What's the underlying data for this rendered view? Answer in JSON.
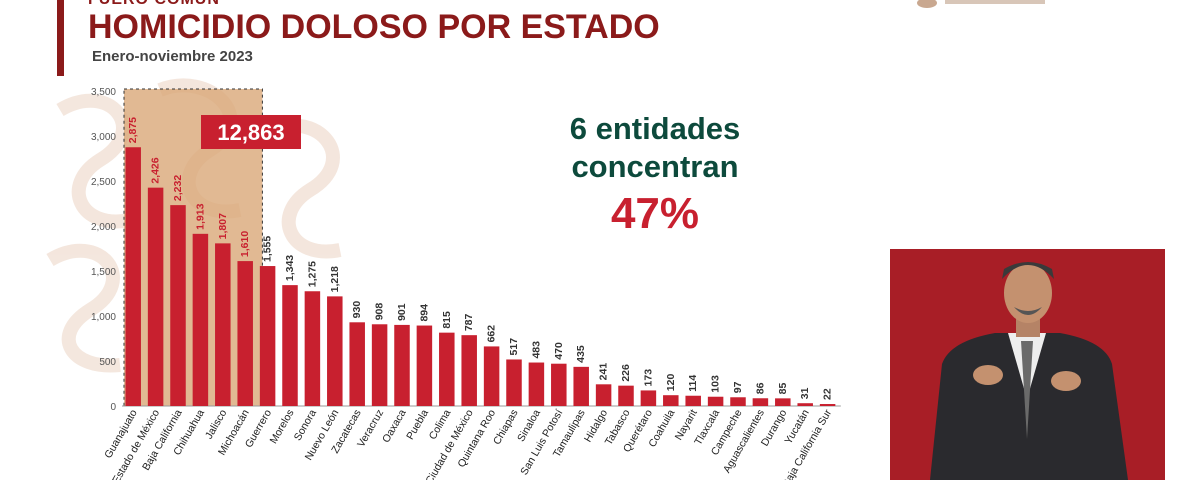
{
  "header": {
    "kicker": "FUERO COMÚN",
    "title": "HOMICIDIO DOLOSO POR ESTADO",
    "subtitle": "Enero-noviembre 2023"
  },
  "callout": {
    "line1": "6 entidades",
    "line2": "concentran",
    "percent": "47%"
  },
  "colors": {
    "bar": "#c8202f",
    "highlight_fill": "#d9a878",
    "title": "#8b1a1a",
    "callout_text": "#0d4a3c",
    "total_box": "#c8202f",
    "video_bg": "#a81e26"
  },
  "interpreter": {
    "icon": "sign-language-interpreter-icon"
  },
  "chart_data": {
    "type": "bar",
    "title": "HOMICIDIO DOLOSO POR ESTADO",
    "subtitle": "Enero-noviembre 2023",
    "categories": [
      "Guanajuato",
      "Estado de México",
      "Baja California",
      "Chihuahua",
      "Jalisco",
      "Michoacán",
      "Guerrero",
      "Morelos",
      "Sonora",
      "Nuevo León",
      "Zacatecas",
      "Veracruz",
      "Oaxaca",
      "Puebla",
      "Colima",
      "Ciudad de México",
      "Quintana Roo",
      "Chiapas",
      "Sinaloa",
      "San Luis Potosí",
      "Tamaulipas",
      "Hidalgo",
      "Tabasco",
      "Querétaro",
      "Coahuila",
      "Nayarit",
      "Tlaxcala",
      "Campeche",
      "Aguascalientes",
      "Durango",
      "Yucatán",
      "Baja California Sur"
    ],
    "values": [
      2875,
      2426,
      2232,
      1913,
      1807,
      1610,
      1555,
      1343,
      1275,
      1218,
      930,
      908,
      901,
      894,
      815,
      787,
      662,
      517,
      483,
      470,
      435,
      241,
      226,
      173,
      120,
      114,
      103,
      97,
      86,
      85,
      31,
      22
    ],
    "value_labels": [
      "2,875",
      "2,426",
      "2,232",
      "1,913",
      "1,807",
      "1,610",
      "1,555",
      "1,343",
      "1,275",
      "1,218",
      "930",
      "908",
      "901",
      "894",
      "815",
      "787",
      "662",
      "517",
      "483",
      "470",
      "435",
      "241",
      "226",
      "173",
      "120",
      "114",
      "103",
      "97",
      "86",
      "85",
      "31",
      "22"
    ],
    "yticks": [
      "0",
      "500",
      "1,000",
      "1,500",
      "2,000",
      "2,500",
      "3,000",
      "3,500"
    ],
    "ylim": [
      0,
      3500
    ],
    "highlight": {
      "count": 6,
      "total_label": "12,863"
    },
    "xlabel": "",
    "ylabel": ""
  }
}
